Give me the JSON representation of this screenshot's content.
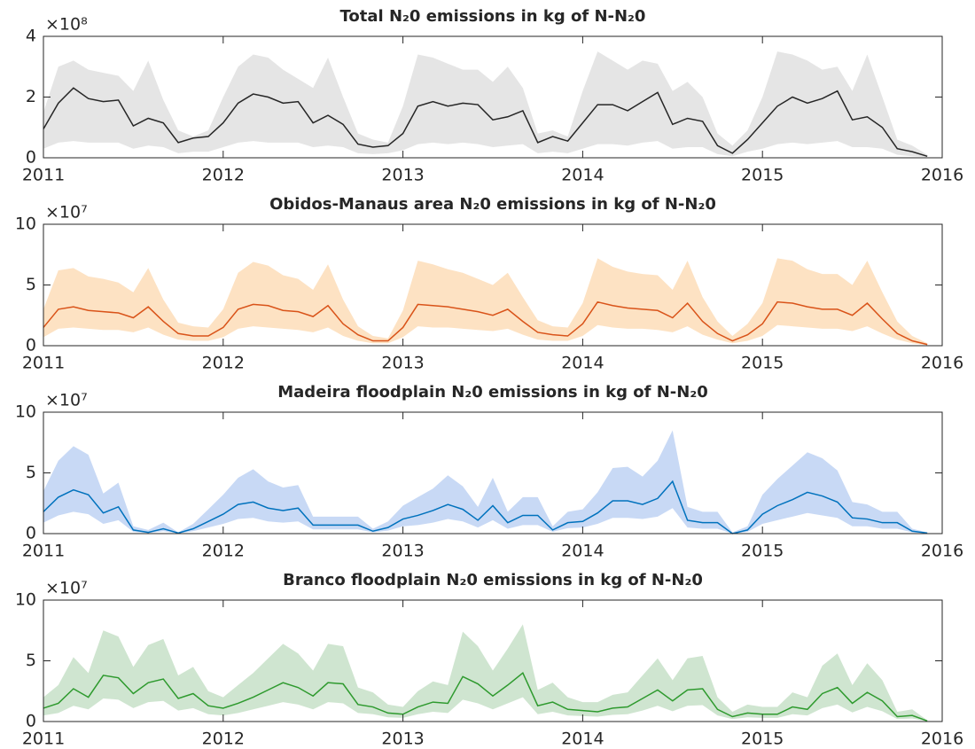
{
  "chart_data": [
    {
      "type": "line",
      "title": "Total N₂0 emissions in kg of N-N₂0",
      "y_exponent_label": "×10⁸",
      "xlim": [
        2011,
        2016
      ],
      "xticks": [
        2011,
        2012,
        2013,
        2014,
        2015,
        2016
      ],
      "ylim": [
        0,
        4
      ],
      "yticks": [
        0,
        2,
        4
      ],
      "x": [
        2011,
        2011.083,
        2011.167,
        2011.25,
        2011.333,
        2011.417,
        2011.5,
        2011.583,
        2011.667,
        2011.75,
        2011.833,
        2011.917,
        2012,
        2012.083,
        2012.167,
        2012.25,
        2012.333,
        2012.417,
        2012.5,
        2012.583,
        2012.667,
        2012.75,
        2012.833,
        2012.917,
        2013,
        2013.083,
        2013.167,
        2013.25,
        2013.333,
        2013.417,
        2013.5,
        2013.583,
        2013.667,
        2013.75,
        2013.833,
        2013.917,
        2014,
        2014.083,
        2014.167,
        2014.25,
        2014.333,
        2014.417,
        2014.5,
        2014.583,
        2014.667,
        2014.75,
        2014.833,
        2014.917,
        2015,
        2015.083,
        2015.167,
        2015.25,
        2015.333,
        2015.417,
        2015.5,
        2015.583,
        2015.667,
        2015.75,
        2015.833,
        2015.917
      ],
      "line": {
        "color": "#262626",
        "values": [
          0.95,
          1.8,
          2.3,
          1.95,
          1.85,
          1.9,
          1.05,
          1.3,
          1.15,
          0.5,
          0.65,
          0.7,
          1.15,
          1.8,
          2.1,
          2.0,
          1.8,
          1.85,
          1.15,
          1.4,
          1.1,
          0.45,
          0.35,
          0.4,
          0.8,
          1.7,
          1.85,
          1.7,
          1.8,
          1.75,
          1.25,
          1.35,
          1.55,
          0.5,
          0.7,
          0.55,
          1.15,
          1.75,
          1.75,
          1.55,
          1.85,
          2.15,
          1.1,
          1.3,
          1.2,
          0.4,
          0.15,
          0.6,
          1.15,
          1.7,
          2.0,
          1.8,
          1.95,
          2.2,
          1.25,
          1.35,
          1.0,
          0.3,
          0.2,
          0.05
        ]
      },
      "band": {
        "color": "#e5e5e5",
        "upper": [
          1.5,
          3.0,
          3.2,
          2.9,
          2.8,
          2.7,
          2.2,
          3.2,
          1.9,
          0.9,
          0.7,
          0.9,
          2.0,
          3.0,
          3.4,
          3.3,
          2.9,
          2.6,
          2.3,
          3.3,
          2.0,
          0.8,
          0.6,
          0.5,
          1.7,
          3.4,
          3.3,
          3.1,
          2.9,
          2.9,
          2.5,
          3.0,
          2.3,
          0.8,
          0.9,
          0.7,
          2.2,
          3.5,
          3.2,
          2.9,
          3.2,
          3.1,
          2.2,
          2.5,
          2.0,
          0.8,
          0.4,
          0.9,
          2.0,
          3.5,
          3.4,
          3.2,
          2.9,
          3.0,
          2.2,
          3.4,
          2.0,
          0.6,
          0.4,
          0.1
        ],
        "lower": [
          0.3,
          0.5,
          0.55,
          0.5,
          0.5,
          0.5,
          0.3,
          0.4,
          0.35,
          0.15,
          0.2,
          0.2,
          0.35,
          0.5,
          0.55,
          0.5,
          0.5,
          0.5,
          0.35,
          0.4,
          0.35,
          0.15,
          0.12,
          0.15,
          0.25,
          0.45,
          0.5,
          0.45,
          0.5,
          0.45,
          0.35,
          0.4,
          0.45,
          0.15,
          0.2,
          0.15,
          0.3,
          0.45,
          0.45,
          0.4,
          0.5,
          0.55,
          0.3,
          0.35,
          0.35,
          0.12,
          0.05,
          0.2,
          0.3,
          0.45,
          0.5,
          0.45,
          0.5,
          0.55,
          0.35,
          0.35,
          0.3,
          0.1,
          0.05,
          0.02
        ]
      }
    },
    {
      "type": "line",
      "title": "Obidos-Manaus area N₂0 emissions in kg of N-N₂0",
      "y_exponent_label": "×10⁷",
      "xlim": [
        2011,
        2016
      ],
      "xticks": [
        2011,
        2012,
        2013,
        2014,
        2015,
        2016
      ],
      "ylim": [
        0,
        10
      ],
      "yticks": [
        0,
        5,
        10
      ],
      "x": [
        2011,
        2011.083,
        2011.167,
        2011.25,
        2011.333,
        2011.417,
        2011.5,
        2011.583,
        2011.667,
        2011.75,
        2011.833,
        2011.917,
        2012,
        2012.083,
        2012.167,
        2012.25,
        2012.333,
        2012.417,
        2012.5,
        2012.583,
        2012.667,
        2012.75,
        2012.833,
        2012.917,
        2013,
        2013.083,
        2013.167,
        2013.25,
        2013.333,
        2013.417,
        2013.5,
        2013.583,
        2013.667,
        2013.75,
        2013.833,
        2013.917,
        2014,
        2014.083,
        2014.167,
        2014.25,
        2014.333,
        2014.417,
        2014.5,
        2014.583,
        2014.667,
        2014.75,
        2014.833,
        2014.917,
        2015,
        2015.083,
        2015.167,
        2015.25,
        2015.333,
        2015.417,
        2015.5,
        2015.583,
        2015.667,
        2015.75,
        2015.833,
        2015.917
      ],
      "line": {
        "color": "#d95319",
        "values": [
          1.5,
          3.0,
          3.2,
          2.9,
          2.8,
          2.7,
          2.3,
          3.2,
          2.0,
          1.0,
          0.8,
          0.8,
          1.5,
          3.0,
          3.4,
          3.3,
          2.9,
          2.8,
          2.4,
          3.3,
          1.8,
          0.9,
          0.4,
          0.4,
          1.5,
          3.4,
          3.3,
          3.2,
          3.0,
          2.8,
          2.5,
          3.0,
          2.0,
          1.1,
          0.9,
          0.8,
          1.8,
          3.6,
          3.3,
          3.1,
          3.0,
          2.9,
          2.3,
          3.5,
          2.0,
          1.0,
          0.4,
          0.9,
          1.8,
          3.6,
          3.5,
          3.2,
          3.0,
          3.0,
          2.5,
          3.5,
          2.2,
          1.0,
          0.4,
          0.1
        ]
      },
      "band": {
        "color": "#fde2c3",
        "upper": [
          3.0,
          6.2,
          6.4,
          5.7,
          5.5,
          5.2,
          4.4,
          6.4,
          3.8,
          1.9,
          1.6,
          1.5,
          3.0,
          6.0,
          6.9,
          6.6,
          5.8,
          5.5,
          4.6,
          6.7,
          3.8,
          1.6,
          0.8,
          0.6,
          2.9,
          7.0,
          6.7,
          6.3,
          6.0,
          5.5,
          5.0,
          6.0,
          4.0,
          2.1,
          1.6,
          1.5,
          3.5,
          7.2,
          6.5,
          6.1,
          5.9,
          5.8,
          4.6,
          7.0,
          4.0,
          2.0,
          0.8,
          1.8,
          3.5,
          7.2,
          7.0,
          6.3,
          5.9,
          5.9,
          5.0,
          7.0,
          4.4,
          2.0,
          0.8,
          0.2
        ],
        "lower": [
          0.7,
          1.4,
          1.5,
          1.4,
          1.3,
          1.3,
          1.1,
          1.5,
          0.9,
          0.5,
          0.4,
          0.4,
          0.7,
          1.4,
          1.6,
          1.5,
          1.4,
          1.3,
          1.1,
          1.5,
          0.8,
          0.4,
          0.2,
          0.2,
          0.7,
          1.6,
          1.5,
          1.5,
          1.4,
          1.3,
          1.2,
          1.4,
          0.9,
          0.5,
          0.4,
          0.4,
          0.8,
          1.7,
          1.5,
          1.4,
          1.4,
          1.3,
          1.1,
          1.6,
          0.9,
          0.5,
          0.2,
          0.4,
          0.8,
          1.7,
          1.6,
          1.5,
          1.4,
          1.4,
          1.2,
          1.6,
          1.0,
          0.5,
          0.2,
          0.05
        ]
      }
    },
    {
      "type": "line",
      "title": "Madeira floodplain N₂0 emissions in kg of N-N₂0",
      "y_exponent_label": "×10⁷",
      "xlim": [
        2011,
        2016
      ],
      "xticks": [
        2011,
        2012,
        2013,
        2014,
        2015,
        2016
      ],
      "ylim": [
        0,
        10
      ],
      "yticks": [
        0,
        5,
        10
      ],
      "x": [
        2011,
        2011.083,
        2011.167,
        2011.25,
        2011.333,
        2011.417,
        2011.5,
        2011.583,
        2011.667,
        2011.75,
        2011.833,
        2011.917,
        2012,
        2012.083,
        2012.167,
        2012.25,
        2012.333,
        2012.417,
        2012.5,
        2012.583,
        2012.667,
        2012.75,
        2012.833,
        2012.917,
        2013,
        2013.083,
        2013.167,
        2013.25,
        2013.333,
        2013.417,
        2013.5,
        2013.583,
        2013.667,
        2013.75,
        2013.833,
        2013.917,
        2014,
        2014.083,
        2014.167,
        2014.25,
        2014.333,
        2014.417,
        2014.5,
        2014.583,
        2014.667,
        2014.75,
        2014.833,
        2014.917,
        2015,
        2015.083,
        2015.167,
        2015.25,
        2015.333,
        2015.417,
        2015.5,
        2015.583,
        2015.667,
        2015.75,
        2015.833,
        2015.917
      ],
      "line": {
        "color": "#0072bd",
        "values": [
          1.8,
          3.0,
          3.6,
          3.2,
          1.7,
          2.2,
          0.3,
          0.1,
          0.4,
          0.05,
          0.4,
          1.0,
          1.6,
          2.4,
          2.6,
          2.1,
          1.9,
          2.1,
          0.7,
          0.7,
          0.7,
          0.7,
          0.2,
          0.5,
          1.2,
          1.5,
          1.9,
          2.4,
          2.0,
          1.1,
          2.3,
          0.9,
          1.5,
          1.5,
          0.3,
          0.9,
          1.0,
          1.7,
          2.7,
          2.7,
          2.4,
          2.9,
          4.3,
          1.1,
          0.9,
          0.9,
          0.0,
          0.3,
          1.6,
          2.3,
          2.8,
          3.4,
          3.1,
          2.6,
          1.3,
          1.2,
          0.9,
          0.9,
          0.2,
          0.05
        ]
      },
      "band": {
        "color": "#c8d9f5",
        "upper": [
          3.5,
          6.0,
          7.2,
          6.5,
          3.3,
          4.2,
          0.6,
          0.3,
          0.9,
          0.1,
          0.8,
          2.0,
          3.2,
          4.6,
          5.3,
          4.3,
          3.8,
          4.0,
          1.4,
          1.4,
          1.4,
          1.4,
          0.4,
          1.0,
          2.3,
          3.0,
          3.7,
          4.8,
          3.9,
          2.2,
          4.6,
          1.8,
          3.0,
          3.0,
          0.6,
          1.8,
          2.0,
          3.4,
          5.4,
          5.5,
          4.7,
          6.0,
          8.5,
          2.2,
          1.8,
          1.8,
          0.1,
          0.6,
          3.2,
          4.5,
          5.6,
          6.7,
          6.2,
          5.2,
          2.6,
          2.4,
          1.8,
          1.8,
          0.4,
          0.1
        ],
        "lower": [
          0.9,
          1.5,
          1.8,
          1.6,
          0.8,
          1.1,
          0.15,
          0.05,
          0.2,
          0.02,
          0.2,
          0.5,
          0.8,
          1.2,
          1.3,
          1.0,
          0.9,
          1.0,
          0.35,
          0.35,
          0.35,
          0.35,
          0.1,
          0.25,
          0.6,
          0.7,
          0.9,
          1.2,
          1.0,
          0.5,
          1.1,
          0.4,
          0.7,
          0.7,
          0.15,
          0.45,
          0.5,
          0.8,
          1.3,
          1.3,
          1.2,
          1.4,
          2.1,
          0.5,
          0.4,
          0.4,
          0.0,
          0.15,
          0.8,
          1.1,
          1.4,
          1.7,
          1.5,
          1.3,
          0.6,
          0.6,
          0.4,
          0.4,
          0.1,
          0.02
        ]
      }
    },
    {
      "type": "line",
      "title": "Branco floodplain N₂0 emissions in kg of N-N₂0",
      "y_exponent_label": "×10⁷",
      "xlim": [
        2011,
        2016
      ],
      "xticks": [
        2011,
        2012,
        2013,
        2014,
        2015,
        2016
      ],
      "ylim": [
        0,
        10
      ],
      "yticks": [
        0,
        5,
        10
      ],
      "x": [
        2011,
        2011.083,
        2011.167,
        2011.25,
        2011.333,
        2011.417,
        2011.5,
        2011.583,
        2011.667,
        2011.75,
        2011.833,
        2011.917,
        2012,
        2012.083,
        2012.167,
        2012.25,
        2012.333,
        2012.417,
        2012.5,
        2012.583,
        2012.667,
        2012.75,
        2012.833,
        2012.917,
        2013,
        2013.083,
        2013.167,
        2013.25,
        2013.333,
        2013.417,
        2013.5,
        2013.583,
        2013.667,
        2013.75,
        2013.833,
        2013.917,
        2014,
        2014.083,
        2014.167,
        2014.25,
        2014.333,
        2014.417,
        2014.5,
        2014.583,
        2014.667,
        2014.75,
        2014.833,
        2014.917,
        2015,
        2015.083,
        2015.167,
        2015.25,
        2015.333,
        2015.417,
        2015.5,
        2015.583,
        2015.667,
        2015.75,
        2015.833,
        2015.917
      ],
      "line": {
        "color": "#2e9a2e",
        "values": [
          1.1,
          1.5,
          2.7,
          2.0,
          3.8,
          3.6,
          2.3,
          3.2,
          3.5,
          1.9,
          2.3,
          1.3,
          1.1,
          1.5,
          2.0,
          2.6,
          3.2,
          2.8,
          2.1,
          3.2,
          3.1,
          1.4,
          1.2,
          0.7,
          0.6,
          1.2,
          1.6,
          1.5,
          3.7,
          3.1,
          2.1,
          3.0,
          4.0,
          1.3,
          1.6,
          1.0,
          0.9,
          0.8,
          1.1,
          1.2,
          1.9,
          2.6,
          1.7,
          2.6,
          2.7,
          1.0,
          0.4,
          0.7,
          0.6,
          0.6,
          1.2,
          1.0,
          2.3,
          2.8,
          1.5,
          2.4,
          1.7,
          0.4,
          0.5,
          0.05
        ]
      },
      "band": {
        "color": "#cfe5d0",
        "upper": [
          2.0,
          3.0,
          5.3,
          4.0,
          7.5,
          7.0,
          4.5,
          6.3,
          6.8,
          3.8,
          4.5,
          2.5,
          2.0,
          3.0,
          4.0,
          5.2,
          6.4,
          5.6,
          4.2,
          6.4,
          6.2,
          2.8,
          2.4,
          1.4,
          1.2,
          2.5,
          3.3,
          3.0,
          7.4,
          6.2,
          4.2,
          6.0,
          8.0,
          2.6,
          3.2,
          2.0,
          1.6,
          1.6,
          2.2,
          2.4,
          3.8,
          5.2,
          3.4,
          5.2,
          5.4,
          2.0,
          0.8,
          1.4,
          1.2,
          1.2,
          2.4,
          2.0,
          4.6,
          5.6,
          3.0,
          4.8,
          3.4,
          0.8,
          1.0,
          0.1
        ],
        "lower": [
          0.5,
          0.7,
          1.3,
          1.0,
          1.9,
          1.8,
          1.1,
          1.6,
          1.7,
          0.9,
          1.1,
          0.6,
          0.5,
          0.7,
          1.0,
          1.3,
          1.6,
          1.4,
          1.0,
          1.6,
          1.5,
          0.7,
          0.6,
          0.35,
          0.3,
          0.6,
          0.8,
          0.7,
          1.8,
          1.5,
          1.0,
          1.5,
          2.0,
          0.6,
          0.8,
          0.5,
          0.45,
          0.4,
          0.55,
          0.6,
          0.9,
          1.3,
          0.85,
          1.3,
          1.35,
          0.5,
          0.2,
          0.35,
          0.3,
          0.3,
          0.6,
          0.5,
          1.1,
          1.4,
          0.75,
          1.2,
          0.85,
          0.2,
          0.25,
          0.02
        ]
      }
    }
  ]
}
